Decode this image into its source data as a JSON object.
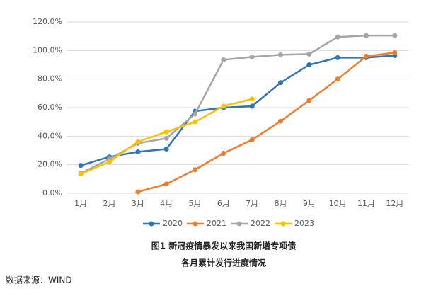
{
  "chart_data": {
    "type": "line",
    "title": "图1 新冠疫情暴发以来我国新增专项债",
    "subtitle": "各月累计发行进度情况",
    "source": "数据来源：WIND",
    "categories": [
      "1月",
      "2月",
      "3月",
      "4月",
      "5月",
      "6月",
      "7月",
      "8月",
      "9月",
      "10月",
      "11月",
      "12月"
    ],
    "series": [
      {
        "name": "2020",
        "color": "#2e75b6",
        "values": [
          19.5,
          25.5,
          29,
          31,
          57.5,
          60,
          61,
          77.5,
          90,
          95,
          95,
          96.5
        ]
      },
      {
        "name": "2021",
        "color": "#ed7d31",
        "values": [
          null,
          null,
          1,
          6.5,
          16.5,
          28,
          37.5,
          50.5,
          65,
          80,
          96,
          98.5
        ]
      },
      {
        "name": "2022",
        "color": "#a5a5a5",
        "values": [
          14,
          24,
          35,
          38.5,
          55.5,
          93.5,
          95.5,
          97,
          97.5,
          109.5,
          110.5,
          110.5
        ]
      },
      {
        "name": "2023",
        "color": "#ffc000",
        "values": [
          13.5,
          22,
          36,
          43,
          50,
          61,
          66,
          null,
          null,
          null,
          null,
          null
        ]
      }
    ],
    "ylim": [
      0,
      120
    ],
    "yticks": [
      {
        "value": 0,
        "label": "0.0%"
      },
      {
        "value": 20,
        "label": "20.0%"
      },
      {
        "value": 40,
        "label": "40.0%"
      },
      {
        "value": 60,
        "label": "60.0%"
      },
      {
        "value": 80,
        "label": "80.0%"
      },
      {
        "value": 100,
        "label": "100.0%"
      },
      {
        "value": 120,
        "label": "120.0%"
      }
    ],
    "grid": true,
    "legend": "bottom"
  }
}
